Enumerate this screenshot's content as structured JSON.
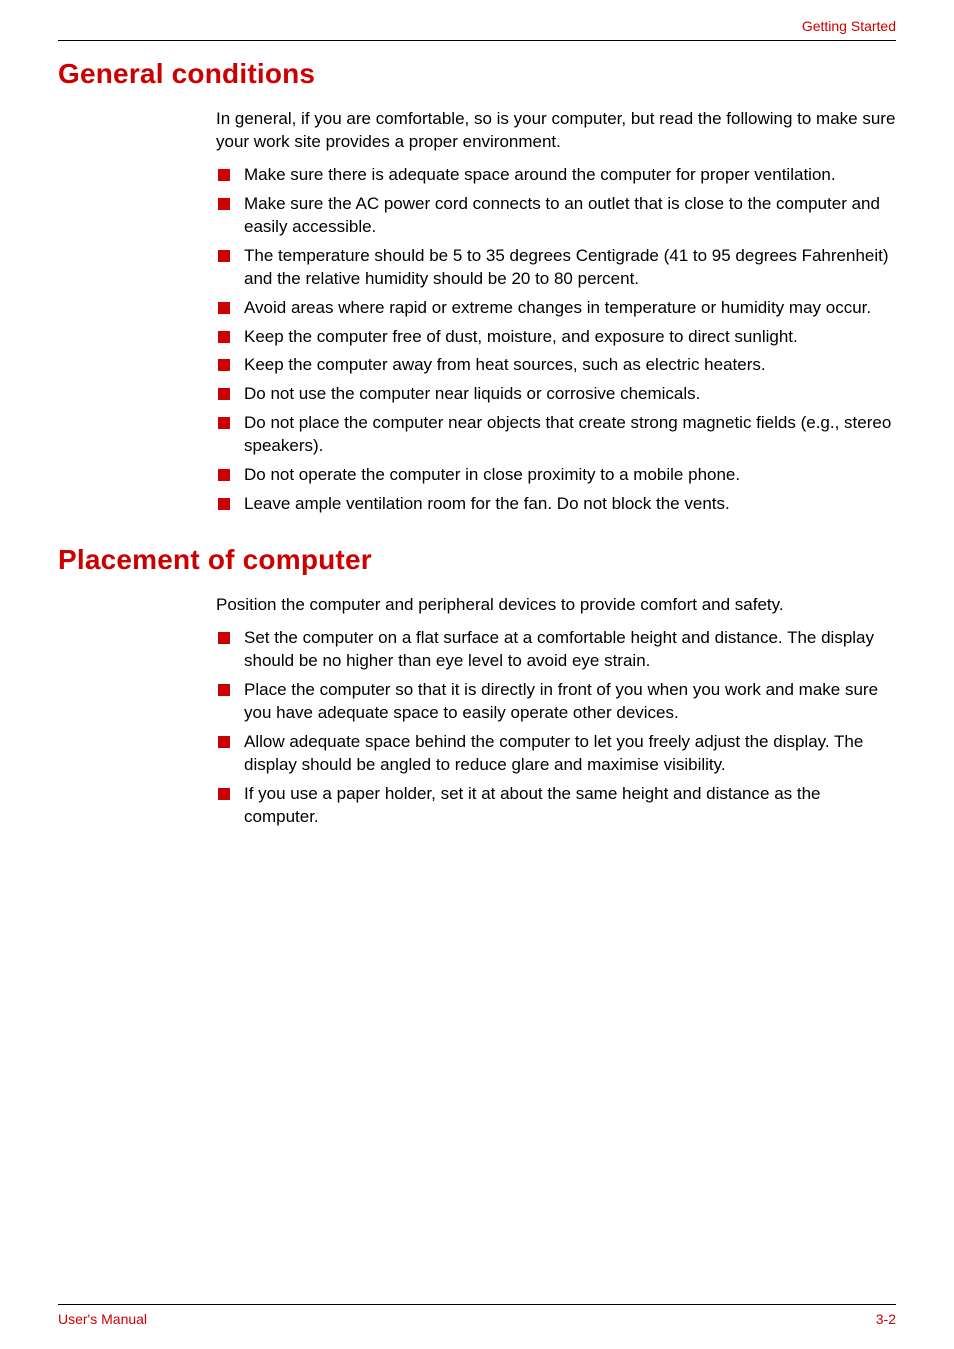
{
  "colors": {
    "accent": "#cc0000",
    "text": "#000000",
    "background": "#ffffff",
    "rule": "#000000"
  },
  "typography": {
    "body_font": "Arial, Helvetica, sans-serif",
    "body_fontsize_pt": 13,
    "heading_fontsize_pt": 21,
    "heading_weight": 900,
    "header_footer_fontsize_pt": 10.5
  },
  "header": {
    "right": "Getting Started"
  },
  "footer": {
    "left": "User's Manual",
    "right": "3-2"
  },
  "sections": [
    {
      "heading": "General conditions",
      "intro": "In general, if you are comfortable, so is your computer, but read the following to make sure your work site provides a proper environment.",
      "bullets": [
        "Make sure there is adequate space around the computer for proper ventilation.",
        "Make sure the AC power cord connects to an outlet that is close to the computer and easily accessible.",
        "The temperature should be 5 to 35 degrees Centigrade (41 to 95 degrees Fahrenheit) and the relative humidity should be 20 to 80 percent.",
        "Avoid areas where rapid or extreme changes in temperature or humidity may occur.",
        "Keep the computer free of dust, moisture, and exposure to direct sunlight.",
        "Keep the computer away from heat sources, such as electric heaters.",
        "Do not use the computer near liquids or corrosive chemicals.",
        "Do not place the computer near objects that create strong magnetic fields (e.g., stereo speakers).",
        "Do not operate the computer in close proximity to a mobile phone.",
        "Leave ample ventilation room for the fan. Do not block the vents."
      ]
    },
    {
      "heading": "Placement of computer",
      "intro": "Position the computer and peripheral devices to provide comfort and safety.",
      "bullets": [
        "Set the computer on a flat surface at a comfortable height and distance. The display should be no higher than eye level to avoid eye strain.",
        "Place the computer so that it is directly in front of you when you work and make sure you have adequate space to easily operate other devices.",
        "Allow adequate space behind the computer to let you freely adjust the display. The display should be angled to reduce glare and maximise visibility.",
        "If you use a paper holder, set it at about the same height and distance as the computer."
      ]
    }
  ]
}
